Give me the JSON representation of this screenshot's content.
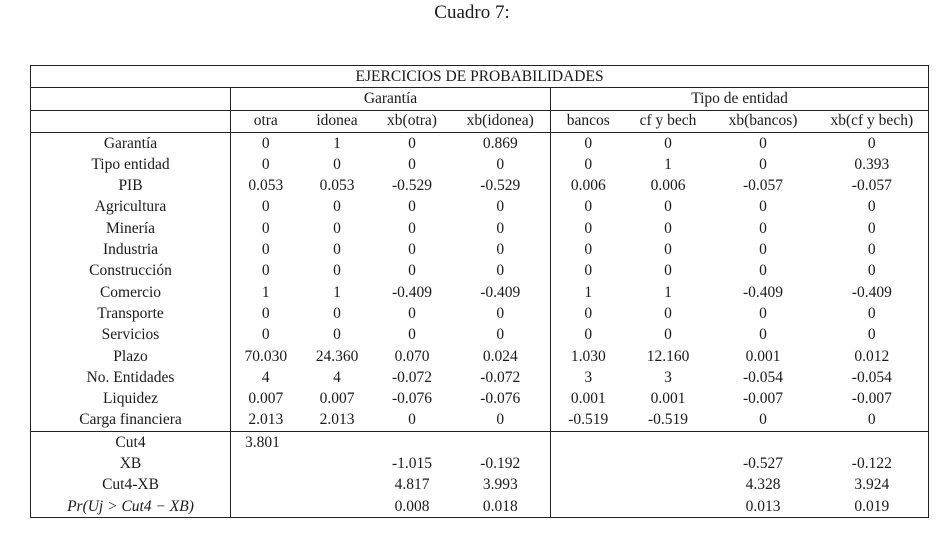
{
  "caption": "Cuadro 7:",
  "table": {
    "title": "EJERCICIOS DE PROBABILIDADES",
    "groups": [
      "Garantía",
      "Tipo de entidad"
    ],
    "columns": [
      "otra",
      "idonea",
      "xb(otra)",
      "xb(idonea)",
      "bancos",
      "cf y bech",
      "xb(bancos)",
      "xb(cf y bech)"
    ],
    "rows": [
      {
        "label": "Garantía",
        "values": [
          "0",
          "1",
          "0",
          "0.869",
          "0",
          "0",
          "0",
          "0"
        ]
      },
      {
        "label": "Tipo entidad",
        "values": [
          "0",
          "0",
          "0",
          "0",
          "0",
          "1",
          "0",
          "0.393"
        ]
      },
      {
        "label": "PIB",
        "values": [
          "0.053",
          "0.053",
          "-0.529",
          "-0.529",
          "0.006",
          "0.006",
          "-0.057",
          "-0.057"
        ]
      },
      {
        "label": "Agricultura",
        "values": [
          "0",
          "0",
          "0",
          "0",
          "0",
          "0",
          "0",
          "0"
        ]
      },
      {
        "label": "Minería",
        "values": [
          "0",
          "0",
          "0",
          "0",
          "0",
          "0",
          "0",
          "0"
        ]
      },
      {
        "label": "Industria",
        "values": [
          "0",
          "0",
          "0",
          "0",
          "0",
          "0",
          "0",
          "0"
        ]
      },
      {
        "label": "Construcción",
        "values": [
          "0",
          "0",
          "0",
          "0",
          "0",
          "0",
          "0",
          "0"
        ]
      },
      {
        "label": "Comercio",
        "values": [
          "1",
          "1",
          "-0.409",
          "-0.409",
          "1",
          "1",
          "-0.409",
          "-0.409"
        ]
      },
      {
        "label": "Transporte",
        "values": [
          "0",
          "0",
          "0",
          "0",
          "0",
          "0",
          "0",
          "0"
        ]
      },
      {
        "label": "Servicios",
        "values": [
          "0",
          "0",
          "0",
          "0",
          "0",
          "0",
          "0",
          "0"
        ]
      },
      {
        "label": "Plazo",
        "values": [
          "70.030",
          "24.360",
          "0.070",
          "0.024",
          "1.030",
          "12.160",
          "0.001",
          "0.012"
        ]
      },
      {
        "label": "No. Entidades",
        "values": [
          "4",
          "4",
          "-0.072",
          "-0.072",
          "3",
          "3",
          "-0.054",
          "-0.054"
        ]
      },
      {
        "label": "Liquidez",
        "values": [
          "0.007",
          "0.007",
          "-0.076",
          "-0.076",
          "0.001",
          "0.001",
          "-0.007",
          "-0.007"
        ]
      },
      {
        "label": "Carga financiera",
        "values": [
          "2.013",
          "2.013",
          "0",
          "0",
          "-0.519",
          "-0.519",
          "0",
          "0"
        ]
      }
    ],
    "summary_rows": [
      {
        "label": "Cut4",
        "values": [
          "3.801",
          "",
          "",
          "",
          "",
          "",
          "",
          ""
        ]
      },
      {
        "label": "XB",
        "values": [
          "",
          "",
          "-1.015",
          "-0.192",
          "",
          "",
          "-0.527",
          "-0.122"
        ]
      },
      {
        "label": "Cut4-XB",
        "values": [
          "",
          "",
          "4.817",
          "3.993",
          "",
          "",
          "4.328",
          "3.924"
        ]
      },
      {
        "label": "Pr(Uj > Cut4 − XB)",
        "values": [
          "",
          "",
          "0.008",
          "0.018",
          "",
          "",
          "0.013",
          "0.019"
        ]
      }
    ]
  }
}
